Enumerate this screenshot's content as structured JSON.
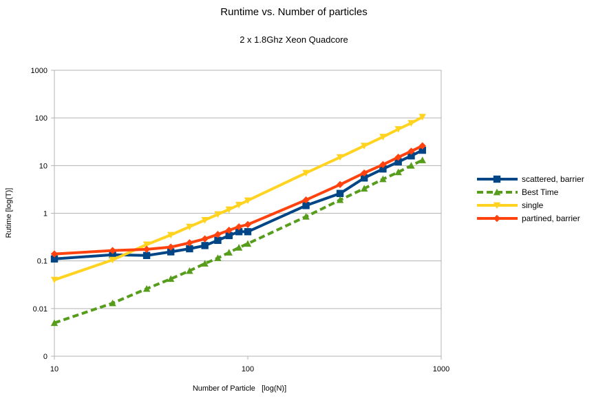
{
  "chart_data": {
    "type": "line",
    "title": "Runtime vs. Number of particles",
    "subtitle": "2 x 1.8Ghz Xeon Quadcore",
    "xlabel": "Number of Particle   [log(N)]",
    "ylabel": "Rutime [log(T)]",
    "x_scale": "log",
    "y_scale": "log",
    "xlim": [
      10,
      1000
    ],
    "ylim": [
      0.001,
      1000
    ],
    "x_ticks": [
      10,
      100,
      1000
    ],
    "x_tick_labels": [
      "10",
      "100",
      "1000"
    ],
    "y_ticks": [
      0.001,
      0.01,
      0.1,
      1,
      10,
      100,
      1000
    ],
    "y_tick_labels": [
      "0",
      "0.01",
      "0.1",
      "1",
      "10",
      "100",
      "1000"
    ],
    "grid": "horizontal",
    "legend_position": "right",
    "x": [
      10,
      20,
      30,
      40,
      50,
      60,
      70,
      80,
      90,
      100,
      200,
      300,
      400,
      500,
      600,
      700,
      800
    ],
    "series": [
      {
        "name": "scattered, barrier",
        "color": "#004586",
        "marker": "square",
        "dash": "solid",
        "values": [
          0.11,
          0.135,
          0.13,
          0.155,
          0.18,
          0.21,
          0.27,
          0.34,
          0.41,
          0.41,
          1.45,
          2.6,
          5.5,
          8.5,
          12,
          16,
          21
        ]
      },
      {
        "name": "Best Time",
        "color": "#579d1c",
        "marker": "triangle-up",
        "dash": "dashed",
        "values": [
          0.005,
          0.013,
          0.026,
          0.042,
          0.062,
          0.088,
          0.115,
          0.15,
          0.19,
          0.23,
          0.85,
          1.9,
          3.3,
          5.2,
          7.3,
          10,
          13
        ]
      },
      {
        "name": "single",
        "color": "#ffd320",
        "marker": "triangle-down",
        "dash": "solid",
        "values": [
          0.04,
          0.105,
          0.22,
          0.35,
          0.52,
          0.72,
          0.95,
          1.2,
          1.5,
          1.85,
          7,
          15,
          26,
          40,
          58,
          78,
          105
        ]
      },
      {
        "name": "partined, barrier",
        "color": "#ff420e",
        "marker": "diamond",
        "dash": "solid",
        "values": [
          0.14,
          0.165,
          0.175,
          0.195,
          0.24,
          0.29,
          0.36,
          0.44,
          0.52,
          0.58,
          1.9,
          4,
          7,
          10.5,
          15,
          20,
          26
        ]
      }
    ]
  }
}
